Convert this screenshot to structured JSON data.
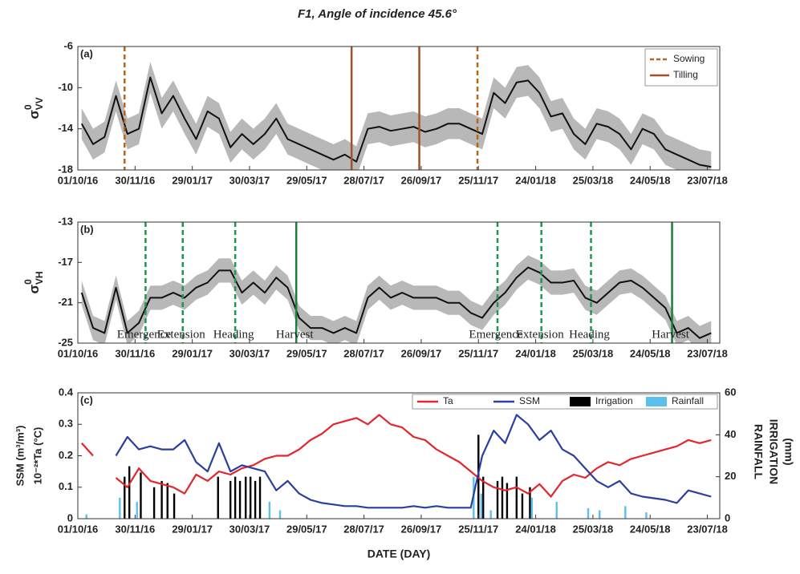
{
  "chart_data": [
    {
      "type": "line",
      "title": "F1, Angle of incidence 45.6°",
      "panel_label": "(a)",
      "ylabel": {
        "text": "σ",
        "sup": "0",
        "sub": "VV"
      },
      "xlim": [
        "2016-10-01",
        "2018-08-05"
      ],
      "xticks": [
        {
          "value": "2016-10-01",
          "label": "01/10/16"
        },
        {
          "value": "2016-11-30",
          "label": "30/11/16"
        },
        {
          "value": "2017-01-29",
          "label": "29/01/17"
        },
        {
          "value": "2017-03-30",
          "label": "30/03/17"
        },
        {
          "value": "2017-05-29",
          "label": "29/05/17"
        },
        {
          "value": "2017-07-28",
          "label": "28/07/17"
        },
        {
          "value": "2017-09-26",
          "label": "26/09/17"
        },
        {
          "value": "2017-11-25",
          "label": "25/11/17"
        },
        {
          "value": "2018-01-24",
          "label": "24/01/18"
        },
        {
          "value": "2018-03-25",
          "label": "25/03/18"
        },
        {
          "value": "2018-05-24",
          "label": "24/05/18"
        },
        {
          "value": "2018-07-23",
          "label": "23/07/18"
        }
      ],
      "ylim": [
        -18,
        -6
      ],
      "yticks": [
        -6,
        -10,
        -14,
        -18
      ],
      "spread": 1.5,
      "x": [
        "2016-10-05",
        "2016-10-17",
        "2016-10-29",
        "2016-11-10",
        "2016-11-22",
        "2016-12-04",
        "2016-12-16",
        "2016-12-28",
        "2017-01-09",
        "2017-01-21",
        "2017-02-02",
        "2017-02-14",
        "2017-02-26",
        "2017-03-10",
        "2017-03-22",
        "2017-04-03",
        "2017-04-15",
        "2017-04-27",
        "2017-05-09",
        "2017-05-21",
        "2017-06-02",
        "2017-06-14",
        "2017-06-26",
        "2017-07-08",
        "2017-07-20",
        "2017-08-01",
        "2017-08-13",
        "2017-08-25",
        "2017-09-06",
        "2017-09-18",
        "2017-09-30",
        "2017-10-12",
        "2017-10-24",
        "2017-11-05",
        "2017-11-17",
        "2017-11-29",
        "2017-12-11",
        "2017-12-23",
        "2018-01-04",
        "2018-01-16",
        "2018-01-28",
        "2018-02-09",
        "2018-02-21",
        "2018-03-05",
        "2018-03-17",
        "2018-03-29",
        "2018-04-10",
        "2018-04-22",
        "2018-05-04",
        "2018-05-16",
        "2018-05-28",
        "2018-06-09",
        "2018-06-21",
        "2018-07-03",
        "2018-07-15",
        "2018-07-27"
      ],
      "series": [
        {
          "color": "#111111",
          "values": [
            -13.5,
            -15.5,
            -14.8,
            -10.8,
            -14.5,
            -14,
            -9,
            -12.5,
            -10.8,
            -13,
            -15,
            -12.3,
            -13,
            -15.8,
            -14.5,
            -15.5,
            -14.5,
            -13,
            -15,
            -15.5,
            -16,
            -16.5,
            -17,
            -16.5,
            -17.2,
            -14,
            -13.8,
            -14.2,
            -14,
            -13.8,
            -14.3,
            -14,
            -13.5,
            -13.5,
            -14,
            -14.5,
            -10.5,
            -11.5,
            -9.5,
            -9.3,
            -10.5,
            -12.8,
            -12.5,
            -14.5,
            -15.5,
            -13.5,
            -13.8,
            -14.5,
            -16,
            -14,
            -14.5,
            -16,
            -16.5,
            -17,
            -17.5,
            -17.7
          ]
        }
      ],
      "events": [
        {
          "name": "Sowing",
          "style": "dashed",
          "color": "#b5651d",
          "x": [
            "2016-11-19",
            "2017-11-24"
          ]
        },
        {
          "name": "Tilling",
          "style": "solid",
          "color": "#a0522d",
          "x": [
            "2017-07-15",
            "2017-09-24"
          ]
        }
      ],
      "legend": "upper right"
    },
    {
      "type": "line",
      "panel_label": "(b)",
      "ylabel": {
        "text": "σ",
        "sup": "0",
        "sub": "VH"
      },
      "xlim": [
        "2016-10-01",
        "2018-08-05"
      ],
      "xticks": [
        {
          "value": "2016-10-01",
          "label": "01/10/16"
        },
        {
          "value": "2016-11-30",
          "label": "30/11/16"
        },
        {
          "value": "2017-01-29",
          "label": "29/01/17"
        },
        {
          "value": "2017-03-30",
          "label": "30/03/17"
        },
        {
          "value": "2017-05-29",
          "label": "29/05/17"
        },
        {
          "value": "2017-07-28",
          "label": "28/07/17"
        },
        {
          "value": "2017-09-26",
          "label": "26/09/17"
        },
        {
          "value": "2017-11-25",
          "label": "25/11/17"
        },
        {
          "value": "2018-01-24",
          "label": "24/01/18"
        },
        {
          "value": "2018-03-25",
          "label": "25/03/18"
        },
        {
          "value": "2018-05-24",
          "label": "24/05/18"
        },
        {
          "value": "2018-07-23",
          "label": "23/07/18"
        }
      ],
      "ylim": [
        -25,
        -13
      ],
      "yticks": [
        -13,
        -17,
        -21,
        -25
      ],
      "spread": 1.2,
      "x": [
        "2016-10-05",
        "2016-10-17",
        "2016-10-29",
        "2016-11-10",
        "2016-11-22",
        "2016-12-04",
        "2016-12-16",
        "2016-12-28",
        "2017-01-09",
        "2017-01-21",
        "2017-02-02",
        "2017-02-14",
        "2017-02-26",
        "2017-03-10",
        "2017-03-22",
        "2017-04-03",
        "2017-04-15",
        "2017-04-27",
        "2017-05-09",
        "2017-05-21",
        "2017-06-02",
        "2017-06-14",
        "2017-06-26",
        "2017-07-08",
        "2017-07-20",
        "2017-08-01",
        "2017-08-13",
        "2017-08-25",
        "2017-09-06",
        "2017-09-18",
        "2017-09-30",
        "2017-10-12",
        "2017-10-24",
        "2017-11-05",
        "2017-11-17",
        "2017-11-29",
        "2017-12-11",
        "2017-12-23",
        "2018-01-04",
        "2018-01-16",
        "2018-01-28",
        "2018-02-09",
        "2018-02-21",
        "2018-03-05",
        "2018-03-17",
        "2018-03-29",
        "2018-04-10",
        "2018-04-22",
        "2018-05-04",
        "2018-05-16",
        "2018-05-28",
        "2018-06-09",
        "2018-06-21",
        "2018-07-03",
        "2018-07-15",
        "2018-07-27"
      ],
      "series": [
        {
          "color": "#111111",
          "values": [
            -20,
            -23.5,
            -24,
            -19.5,
            -24,
            -23,
            -20.5,
            -20.5,
            -20,
            -20.5,
            -19.5,
            -19,
            -17.8,
            -17.8,
            -20,
            -19,
            -20,
            -18.5,
            -19.5,
            -22.5,
            -23.5,
            -23.5,
            -24,
            -23.5,
            -24,
            -20.5,
            -19.5,
            -20.5,
            -20,
            -20.5,
            -20.5,
            -20.5,
            -21,
            -21,
            -22,
            -22.5,
            -21,
            -20,
            -18.5,
            -17.5,
            -18,
            -19,
            -19,
            -18.8,
            -20.5,
            -21,
            -20,
            -19,
            -18.8,
            -19.5,
            -20.5,
            -21.5,
            -24,
            -23.5,
            -24.5,
            -24
          ]
        }
      ],
      "events": [
        {
          "style": "dashed",
          "color": "#1a9850",
          "x": [
            "2016-12-11",
            "2017-01-19",
            "2017-03-15",
            "2017-12-15",
            "2018-01-30",
            "2018-03-23"
          ],
          "labels": [
            "Emergence",
            "Extension",
            "Heading",
            "Emergence",
            "Extension",
            "Heading"
          ]
        },
        {
          "style": "solid",
          "color": "#1a7f3a",
          "x": [
            "2017-05-18",
            "2018-06-16"
          ],
          "labels": [
            "Harvest",
            "Harvest"
          ]
        }
      ]
    },
    {
      "type": "line",
      "panel_label": "(c)",
      "xlabel": "DATE (DAY)",
      "ylabel": [
        "SSM (m³/m³)",
        "10⁻²*Ta (°C)"
      ],
      "y2label": [
        "RAINFALL",
        "IRRIGATION",
        "(mm)"
      ],
      "xlim": [
        "2016-10-01",
        "2018-08-05"
      ],
      "xticks": [
        {
          "value": "2016-10-01",
          "label": "01/10/16"
        },
        {
          "value": "2016-11-30",
          "label": "30/11/16"
        },
        {
          "value": "2017-01-29",
          "label": "29/01/17"
        },
        {
          "value": "2017-03-30",
          "label": "30/03/17"
        },
        {
          "value": "2017-05-29",
          "label": "29/05/17"
        },
        {
          "value": "2017-07-28",
          "label": "28/07/17"
        },
        {
          "value": "2017-09-26",
          "label": "26/09/17"
        },
        {
          "value": "2017-11-25",
          "label": "25/11/17"
        },
        {
          "value": "2018-01-24",
          "label": "24/01/18"
        },
        {
          "value": "2018-03-25",
          "label": "25/03/18"
        },
        {
          "value": "2018-05-24",
          "label": "24/05/18"
        },
        {
          "value": "2018-07-23",
          "label": "23/07/18"
        }
      ],
      "ylim": [
        0,
        0.4
      ],
      "yticks": [
        0,
        0.1,
        0.2,
        0.3,
        0.4
      ],
      "y2lim": [
        0,
        60
      ],
      "y2ticks": [
        0,
        20,
        40,
        60
      ],
      "x": [
        "2016-10-05",
        "2016-10-17",
        "2016-10-29",
        "2016-11-10",
        "2016-11-22",
        "2016-12-04",
        "2016-12-16",
        "2016-12-28",
        "2017-01-09",
        "2017-01-21",
        "2017-02-02",
        "2017-02-14",
        "2017-02-26",
        "2017-03-10",
        "2017-03-22",
        "2017-04-03",
        "2017-04-15",
        "2017-04-27",
        "2017-05-09",
        "2017-05-21",
        "2017-06-02",
        "2017-06-14",
        "2017-06-26",
        "2017-07-08",
        "2017-07-20",
        "2017-08-01",
        "2017-08-13",
        "2017-08-25",
        "2017-09-06",
        "2017-09-18",
        "2017-09-30",
        "2017-10-12",
        "2017-10-24",
        "2017-11-05",
        "2017-11-17",
        "2017-11-29",
        "2017-12-11",
        "2017-12-23",
        "2018-01-04",
        "2018-01-16",
        "2018-01-28",
        "2018-02-09",
        "2018-02-21",
        "2018-03-05",
        "2018-03-17",
        "2018-03-29",
        "2018-04-10",
        "2018-04-22",
        "2018-05-04",
        "2018-05-16",
        "2018-05-28",
        "2018-06-09",
        "2018-06-21",
        "2018-07-03",
        "2018-07-15",
        "2018-07-27"
      ],
      "series": [
        {
          "name": "Ta",
          "color": "#e3262b",
          "values": [
            0.24,
            0.2,
            null,
            0.13,
            0.1,
            0.16,
            0.12,
            0.11,
            0.1,
            0.08,
            0.14,
            0.12,
            0.15,
            0.14,
            0.16,
            0.17,
            0.19,
            0.2,
            0.2,
            0.22,
            0.25,
            0.27,
            0.3,
            0.31,
            0.32,
            0.3,
            0.33,
            0.3,
            0.29,
            0.26,
            0.25,
            0.22,
            0.2,
            0.18,
            0.15,
            0.12,
            0.1,
            0.09,
            0.1,
            0.08,
            0.11,
            0.07,
            0.12,
            0.14,
            0.13,
            0.16,
            0.18,
            0.17,
            0.19,
            0.2,
            0.21,
            0.22,
            0.23,
            0.25,
            0.24,
            0.25
          ]
        },
        {
          "name": "SSM",
          "color": "#2b3f9e",
          "values": [
            null,
            null,
            null,
            0.2,
            0.26,
            0.22,
            0.23,
            0.22,
            0.22,
            0.25,
            0.18,
            0.15,
            0.24,
            0.15,
            0.17,
            0.16,
            0.15,
            0.09,
            0.12,
            0.08,
            0.06,
            0.05,
            0.045,
            0.04,
            0.04,
            0.035,
            0.035,
            0.035,
            0.035,
            0.04,
            0.035,
            0.04,
            0.035,
            0.035,
            0.035,
            0.2,
            0.28,
            0.24,
            0.33,
            0.3,
            0.25,
            0.28,
            0.22,
            0.2,
            0.16,
            0.12,
            0.1,
            0.12,
            0.08,
            0.07,
            0.065,
            0.06,
            0.05,
            0.09,
            0.08,
            0.07
          ]
        },
        {
          "name": "Irrigation",
          "type": "bar",
          "axis": "y2",
          "color": "#000000",
          "x": [
            "2016-11-19",
            "2016-11-24",
            "2016-12-06",
            "2016-12-20",
            "2016-12-28",
            "2017-01-03",
            "2017-01-10",
            "2017-02-25",
            "2017-03-10",
            "2017-03-15",
            "2017-03-20",
            "2017-03-26",
            "2017-03-31",
            "2017-04-05",
            "2017-04-10",
            "2017-11-25",
            "2017-11-30",
            "2017-12-15",
            "2017-12-20",
            "2017-12-25",
            "2018-01-04",
            "2018-01-10",
            "2018-01-18"
          ],
          "values": [
            20,
            25,
            22,
            15,
            18,
            17,
            12,
            20,
            18,
            20,
            18,
            20,
            20,
            18,
            20,
            40,
            20,
            18,
            20,
            17,
            20,
            12,
            15
          ]
        },
        {
          "name": "Rainfall",
          "type": "bar",
          "axis": "y2",
          "color": "#5bc0eb",
          "x": [
            "2016-10-10",
            "2016-11-14",
            "2016-12-02",
            "2017-04-20",
            "2017-05-01",
            "2017-11-20",
            "2017-11-28",
            "2017-12-08",
            "2018-01-20",
            "2018-02-15",
            "2018-03-20",
            "2018-04-01",
            "2018-04-28",
            "2018-05-20"
          ],
          "values": [
            2,
            10,
            8,
            8,
            4,
            20,
            12,
            4,
            10,
            8,
            5,
            4,
            6,
            3
          ]
        }
      ],
      "legend": "upper right"
    }
  ]
}
